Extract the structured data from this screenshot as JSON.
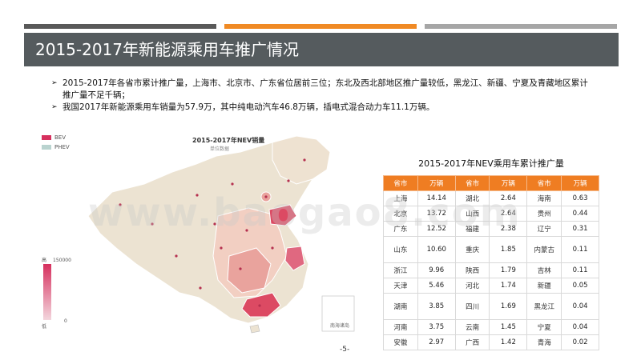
{
  "header": {
    "title": "2015-2017年新能源乘用车推广情况",
    "bars": [
      "#595959",
      "#f08a24",
      "#a6a6a6"
    ]
  },
  "bullets": [
    "2015-2017年各省市累计推广量，上海市、北京市、广东省位居前三位；东北及西北部地区推广量较低，黑龙江、新疆、宁夏及青藏地区累计推广量不足千辆；",
    "我国2017年新能源乘用车销量为57.9万，其中纯电动汽车46.8万辆，插电式混合动力车11.1万辆。"
  ],
  "map": {
    "title": "2015-2017年NEV销量",
    "subtitle": "单位数据",
    "legend": [
      {
        "label": "BEV",
        "color": "#d6305e"
      },
      {
        "label": "PHEV",
        "color": "#b9d3cf"
      }
    ],
    "scale_high": "高",
    "scale_low": "低",
    "scale_max": "150000",
    "scale_min": "0",
    "sea_label": "南海诸岛",
    "colors": {
      "land": "#ece3d2",
      "light": "#f2cfc2",
      "mid": "#e9a39d",
      "dark": "#dc4a63"
    }
  },
  "table": {
    "title": "2015-2017年NEV乘用车累计推广量",
    "headers": [
      "省市",
      "万辆",
      "省市",
      "万辆",
      "省市",
      "万辆"
    ],
    "rows": [
      [
        "上海",
        "14.14",
        "湖北",
        "2.64",
        "海南",
        "0.63"
      ],
      [
        "北京",
        "13.72",
        "山西",
        "2.64",
        "贵州",
        "0.44"
      ],
      [
        "广东",
        "12.52",
        "福建",
        "2.38",
        "辽宁",
        "0.31"
      ],
      [
        "山东",
        "10.60",
        "重庆",
        "1.85",
        "内蒙古",
        "0.11"
      ],
      [
        "浙江",
        "9.96",
        "陕西",
        "1.79",
        "吉林",
        "0.11"
      ],
      [
        "天津",
        "5.46",
        "河北",
        "1.74",
        "新疆",
        "0.05"
      ],
      [
        "湖南",
        "3.85",
        "四川",
        "1.69",
        "黑龙江",
        "0.04"
      ],
      [
        "河南",
        "3.75",
        "云南",
        "1.45",
        "宁夏",
        "0.04"
      ],
      [
        "安徽",
        "2.97",
        "广西",
        "1.42",
        "青海",
        "0.02"
      ]
    ]
  },
  "page_number": "-5-",
  "watermark": "www.baogao8.com"
}
